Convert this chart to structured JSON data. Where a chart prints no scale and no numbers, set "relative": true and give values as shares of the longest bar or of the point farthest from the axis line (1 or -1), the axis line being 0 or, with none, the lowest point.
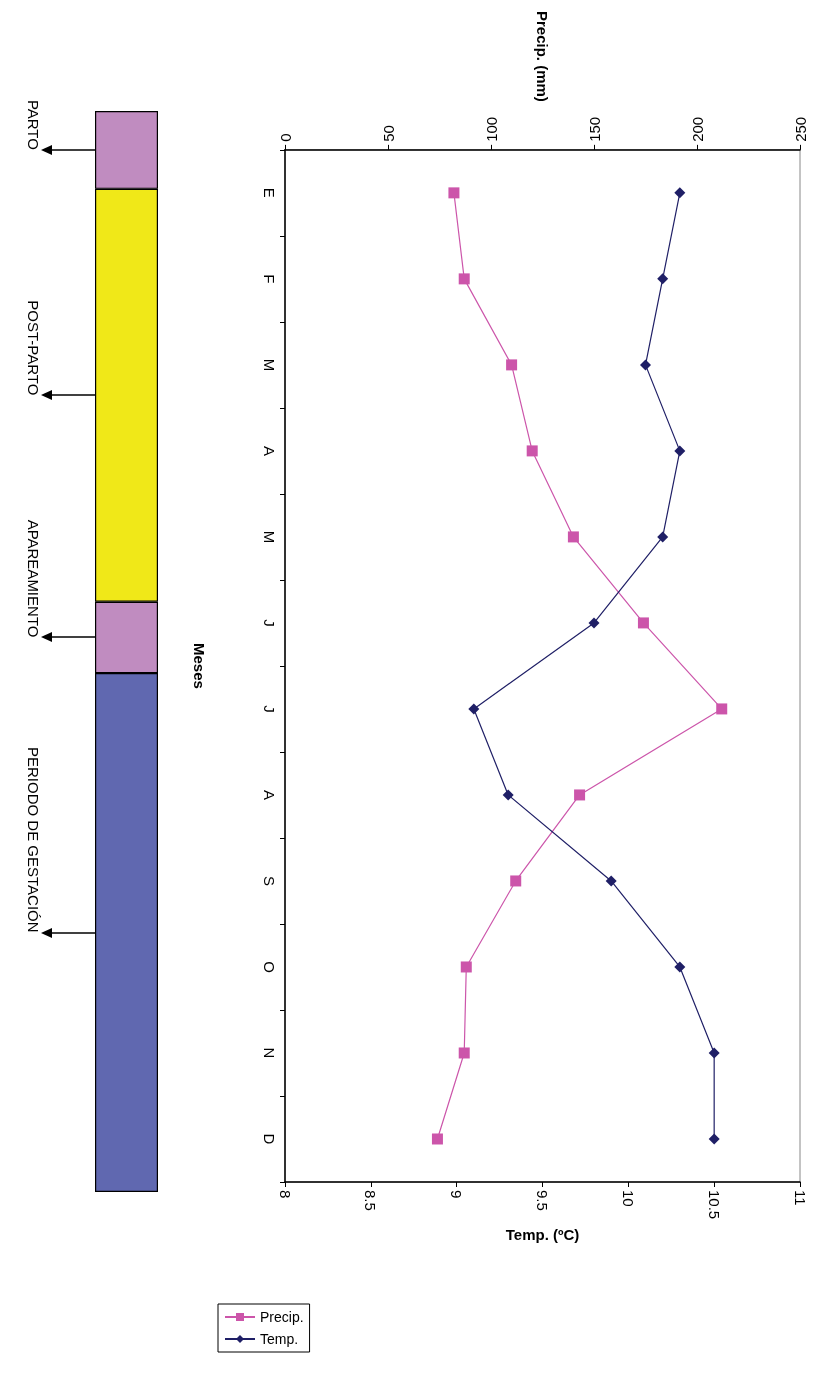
{
  "chart_data": [
    {
      "type": "line",
      "orientation": "horizontal",
      "xlabel": "Temp. (ºC)",
      "x2label": "Precip. (mm)",
      "ylabel": "Meses",
      "categories": [
        "E",
        "F",
        "M",
        "A",
        "M",
        "J",
        "J",
        "A",
        "S",
        "O",
        "N",
        "D"
      ],
      "series": [
        {
          "name": "Precip.",
          "color": "#cc55aa",
          "marker": "square",
          "axis": "x2",
          "values": [
            82,
            87,
            110,
            120,
            140,
            174,
            212,
            143,
            112,
            88,
            87,
            74
          ]
        },
        {
          "name": "Temp.",
          "color": "#1f1f66",
          "marker": "diamond",
          "values": [
            10.3,
            10.2,
            10.1,
            10.3,
            10.2,
            9.8,
            9.1,
            9.3,
            9.9,
            10.3,
            10.5,
            10.5
          ]
        }
      ],
      "xlim": [
        8,
        11
      ],
      "xticks": [
        8,
        8.5,
        9,
        9.5,
        10,
        10.5,
        11
      ],
      "x2lim": [
        0,
        250
      ],
      "x2ticks": [
        0,
        50,
        100,
        150,
        200,
        250
      ],
      "grid": false,
      "legend": "bottom left"
    },
    {
      "type": "bar",
      "stacked": true,
      "relative": true,
      "categories": [
        null
      ],
      "series": [
        {
          "name": "PERIODO DE GESTACIÓN",
          "color": "#6068b0",
          "values": [
            0.48
          ]
        },
        {
          "name": "APAREAMIENTO",
          "color": "#c08cc0",
          "values": [
            0.066
          ]
        },
        {
          "name": "POST-PARTO",
          "color": "#f0e818",
          "values": [
            0.382
          ]
        },
        {
          "name": "PARTO",
          "color": "#c08cc0",
          "values": [
            0.072
          ]
        }
      ]
    }
  ]
}
